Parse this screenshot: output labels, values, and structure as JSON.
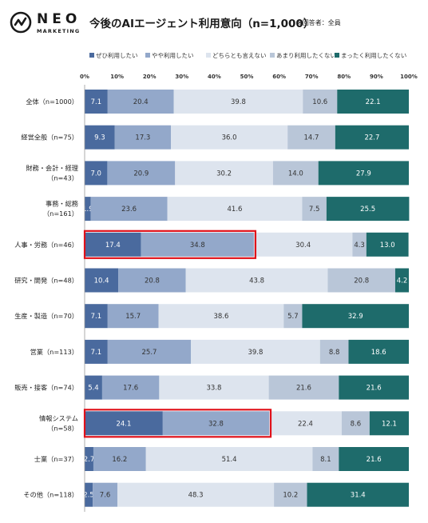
{
  "logo": {
    "main": "NEO",
    "sub": "MARKETING"
  },
  "header": {
    "title": "今後のAIエージェント利用意向（n=1,000）",
    "note": "※回答者：全員"
  },
  "chart_data": {
    "type": "bar",
    "orientation": "horizontal",
    "stacked": true,
    "percent_scale": true,
    "xlim": [
      0,
      100
    ],
    "x_ticks": [
      "0%",
      "10%",
      "20%",
      "30%",
      "40%",
      "50%",
      "60%",
      "70%",
      "80%",
      "90%",
      "100%"
    ],
    "legend_position": "top",
    "categories": [
      [
        "全体（n=1000）"
      ],
      [
        "経営全般（n=75）"
      ],
      [
        "財務・会計・経理",
        "（n=43）"
      ],
      [
        "事務・総務",
        "（n=161）"
      ],
      [
        "人事・労務（n=46）"
      ],
      [
        "研究・開発（n=48）"
      ],
      [
        "生産・製造（n=70）"
      ],
      [
        "営業（n=113）"
      ],
      [
        "販売・接客（n=74）"
      ],
      [
        "情報システム",
        "（n=58）"
      ],
      [
        "士業（n=37）"
      ],
      [
        "その他（n=118）"
      ]
    ],
    "series": [
      {
        "name": "ぜひ利用したい",
        "color": "#4a6a9e",
        "values": [
          7.1,
          9.3,
          7.0,
          1.9,
          17.4,
          10.4,
          7.1,
          7.1,
          5.4,
          24.1,
          2.7,
          2.5
        ]
      },
      {
        "name": "やや利用したい",
        "color": "#93a8ca",
        "values": [
          20.4,
          17.3,
          20.9,
          23.6,
          34.8,
          20.8,
          15.7,
          25.7,
          17.6,
          32.8,
          16.2,
          7.6
        ]
      },
      {
        "name": "どちらとも言えない",
        "color": "#dde4ee",
        "values": [
          39.8,
          36.0,
          30.2,
          41.6,
          30.4,
          43.8,
          38.6,
          39.8,
          33.8,
          22.4,
          51.4,
          48.3
        ]
      },
      {
        "name": "あまり利用したくない",
        "color": "#b9c6d8",
        "values": [
          10.6,
          14.7,
          14.0,
          7.5,
          4.3,
          20.8,
          5.7,
          8.8,
          21.6,
          8.6,
          8.1,
          10.2
        ]
      },
      {
        "name": "まったく利用したくない",
        "color": "#1e6b6b",
        "values": [
          22.1,
          22.7,
          27.9,
          25.5,
          13.0,
          4.2,
          32.9,
          18.6,
          21.6,
          12.1,
          21.6,
          31.4
        ]
      }
    ],
    "label_colors": [
      "#ffffff",
      "#333333",
      "#333333",
      "#333333",
      "#ffffff"
    ],
    "highlight": {
      "color": "#e0111a",
      "rows": [
        4,
        9
      ],
      "series": [
        0,
        1
      ]
    }
  }
}
